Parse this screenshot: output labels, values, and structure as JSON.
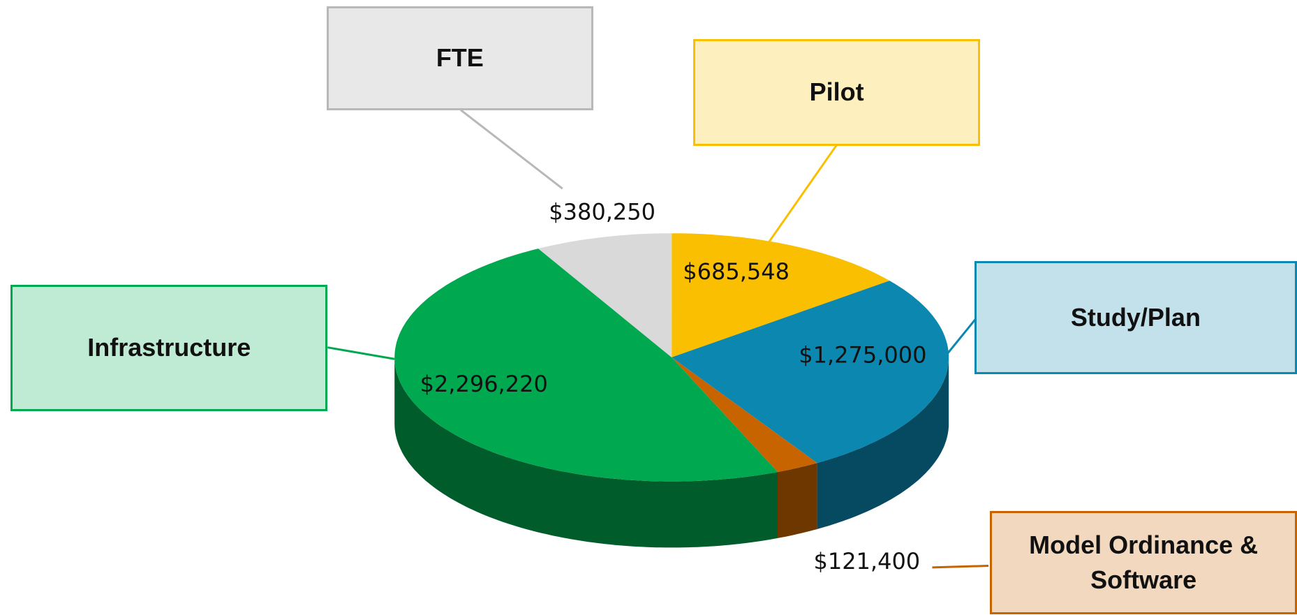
{
  "chart_data": {
    "type": "pie3d",
    "categories": [
      "Pilot",
      "Study/Plan",
      "Model Ordinance & Software",
      "Infrastructure",
      "FTE"
    ],
    "values": [
      685548,
      1275000,
      121400,
      2296220,
      380250
    ],
    "value_labels": [
      "$685,548",
      "$1,275,000",
      "$121,400",
      "$2,296,220",
      "$380,250"
    ],
    "colors": [
      "#f9bf00",
      "#0b87b0",
      "#c86400",
      "#00a94f",
      "#d9d9d9"
    ]
  }
}
